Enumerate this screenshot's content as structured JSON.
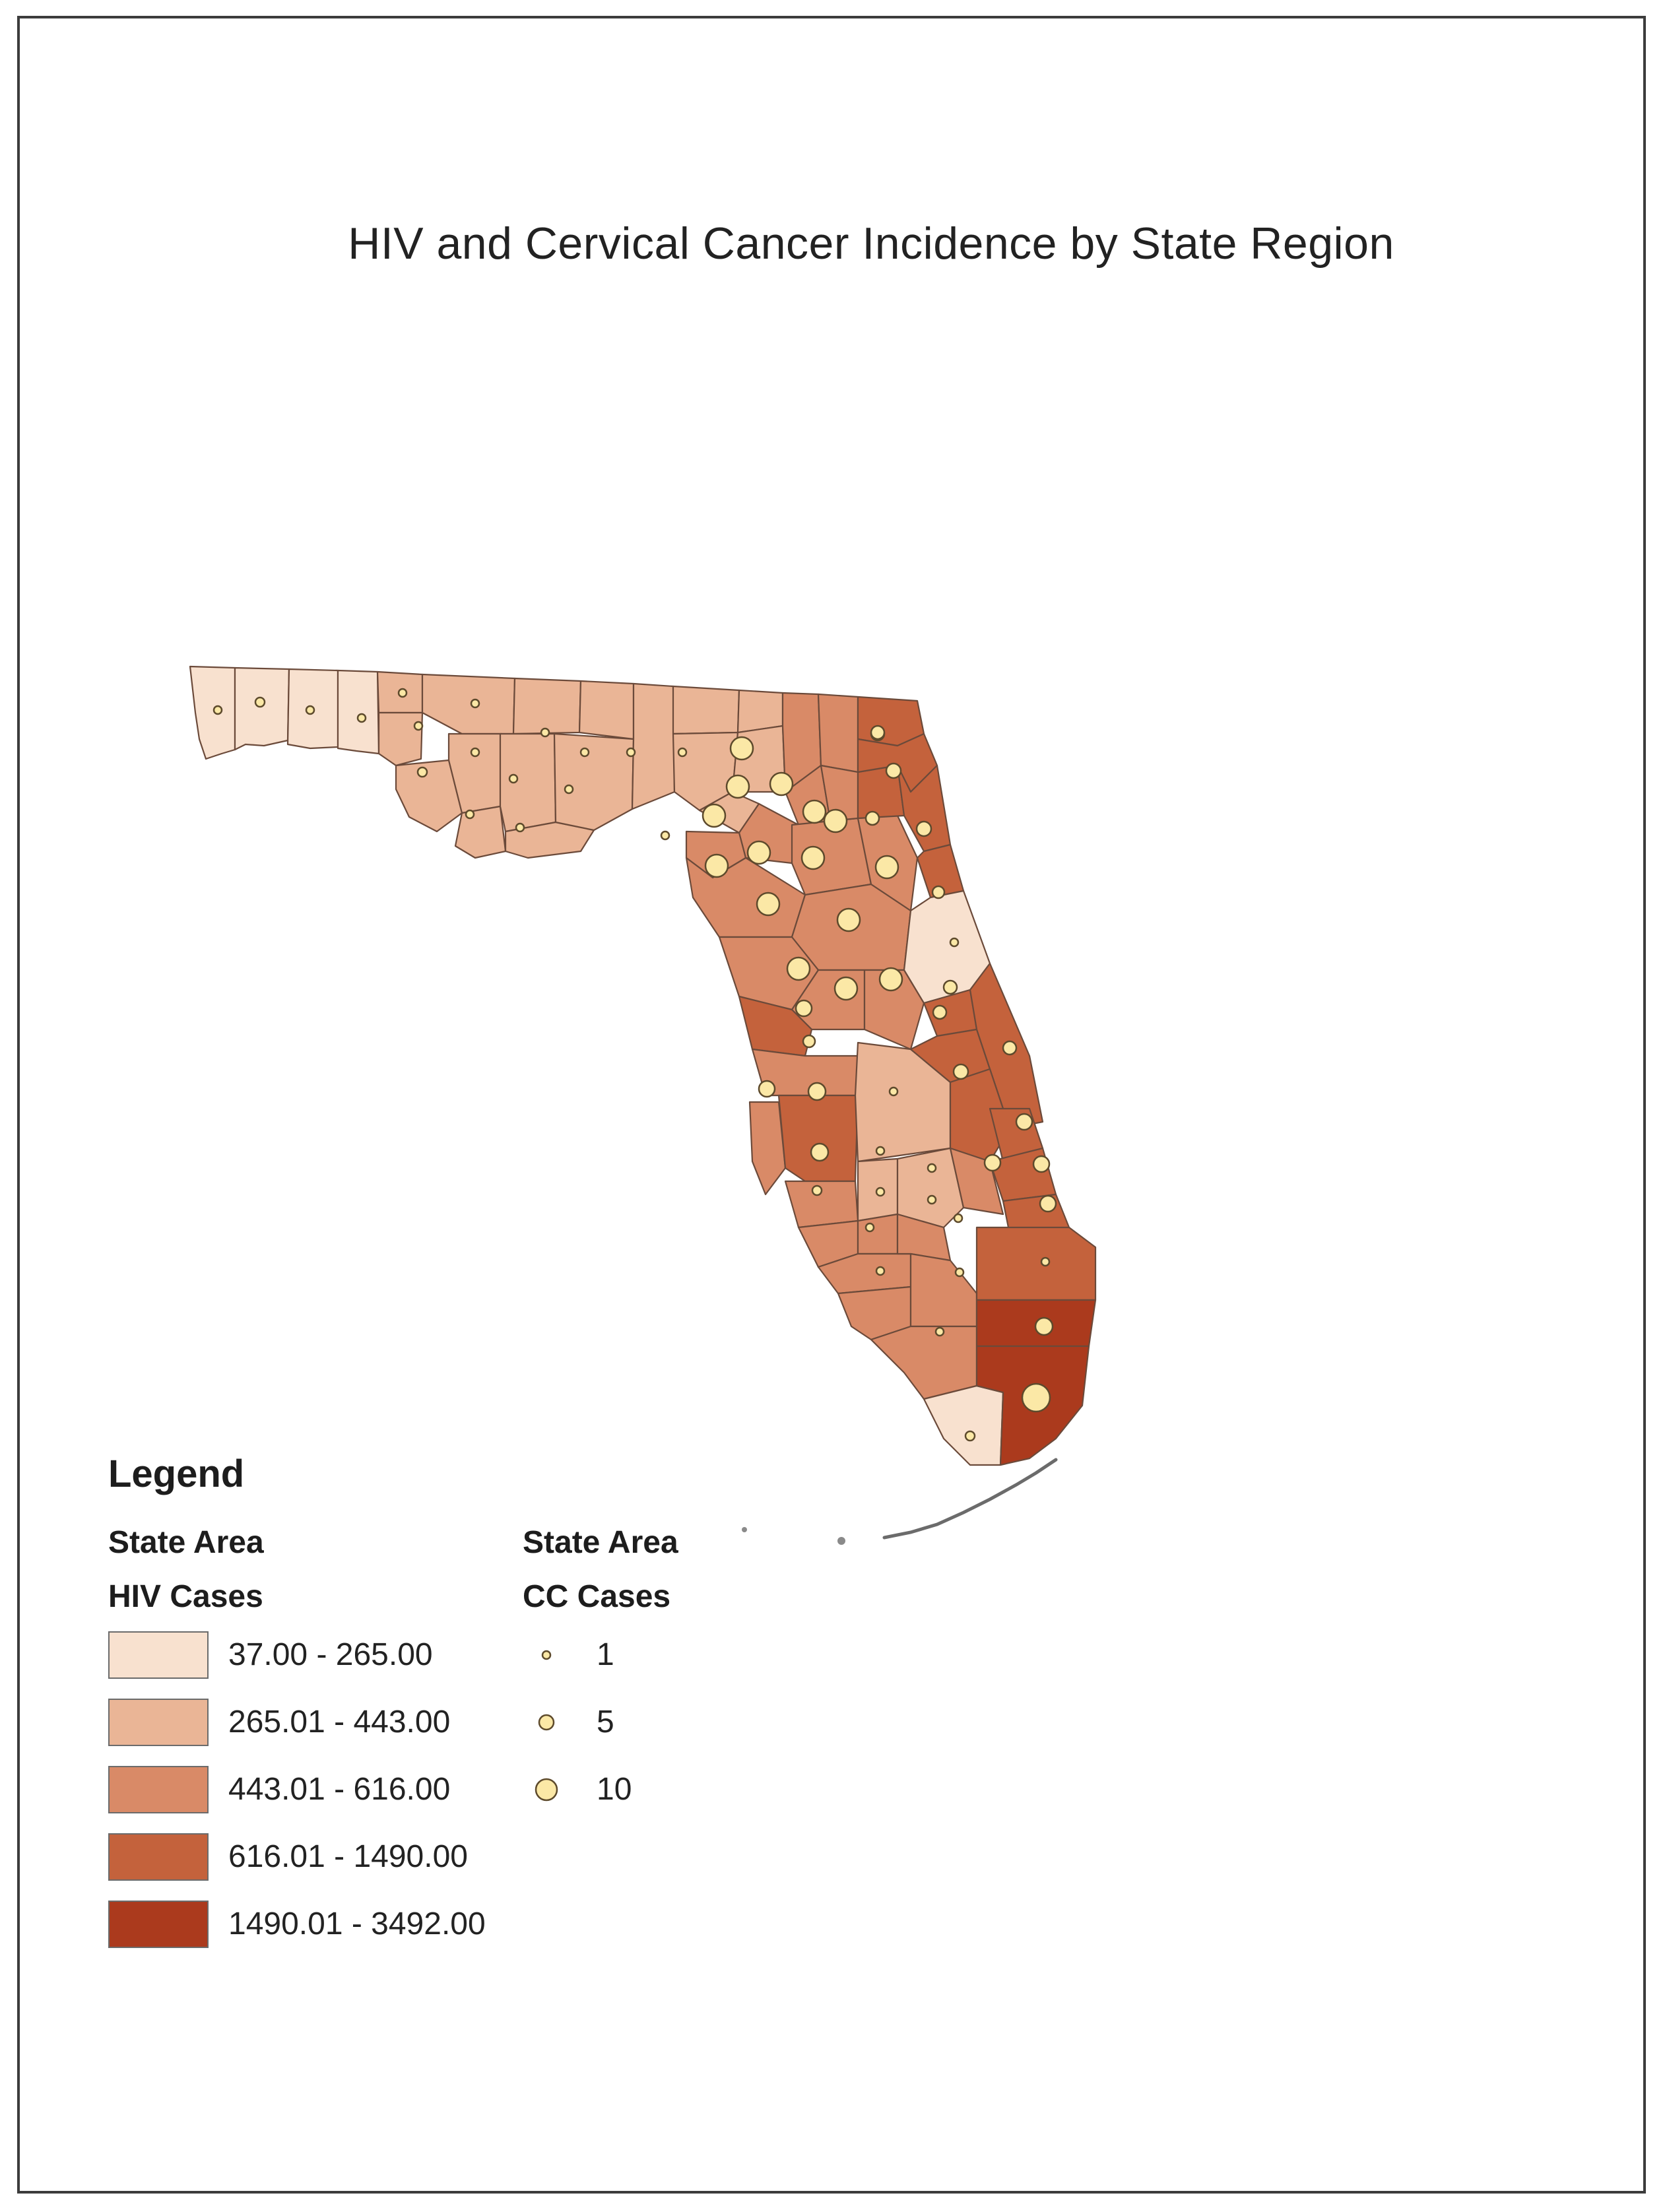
{
  "title": "HIV and Cervical Cancer Incidence by State Region",
  "legend": {
    "title": "Legend",
    "hiv": {
      "heading_line1": "State Area",
      "heading_line2": "HIV Cases",
      "classes": [
        {
          "label": "37.00 - 265.00",
          "color": "#f8e1cf"
        },
        {
          "label": "265.01 - 443.00",
          "color": "#eab596"
        },
        {
          "label": "443.01 - 616.00",
          "color": "#d98a67"
        },
        {
          "label": "616.01 - 1490.00",
          "color": "#c4623c"
        },
        {
          "label": "1490.01 - 3492.00",
          "color": "#ab3a1d"
        }
      ]
    },
    "cc": {
      "heading_line1": "State Area",
      "heading_line2": "CC Cases",
      "classes": [
        {
          "label": "1",
          "value": 1
        },
        {
          "label": "5",
          "value": 5
        },
        {
          "label": "10",
          "value": 10
        }
      ]
    }
  },
  "colors": {
    "frame": "#3c3c3c",
    "county_stroke": "#6b4a3a",
    "dot_fill": "#fbe8a6",
    "dot_stroke": "#5d4a2c"
  }
}
